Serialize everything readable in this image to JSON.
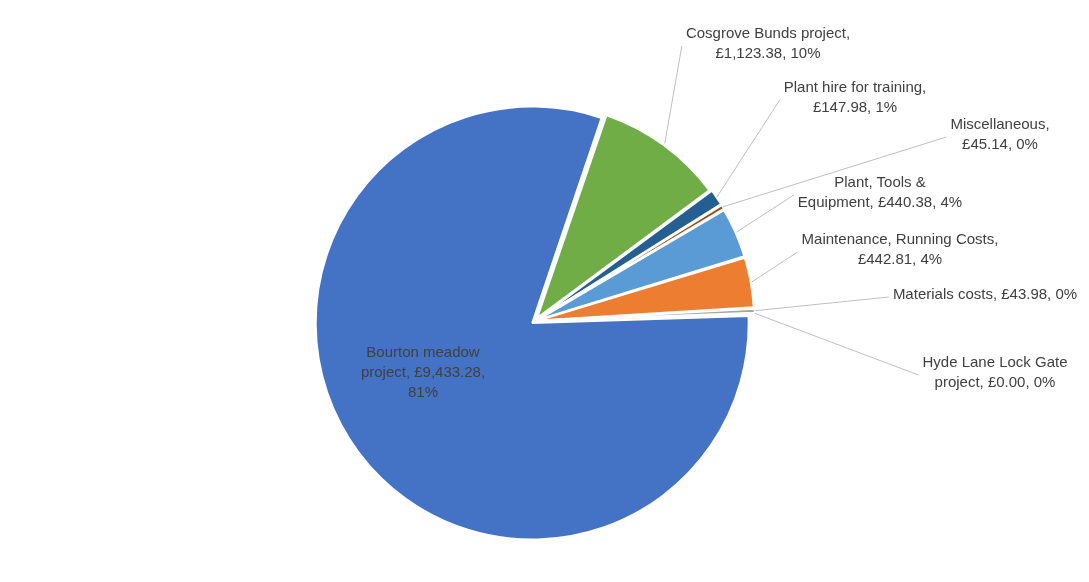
{
  "chart_data": {
    "type": "pie",
    "categories": [
      "Bourton meadow project, £9,433.28, 81%",
      "Cosgrove Bunds project, £1,123.38, 10%",
      "Plant hire for training, £147.98, 1%",
      "Miscellaneous, £45.14, 0%",
      "Plant, Tools & Equipment, £440.38, 4%",
      "Maintenance, Running Costs, £442.81, 4%",
      "Materials costs, £43.98, 0%",
      "Hyde Lane Lock Gate project, £0.00, 0%"
    ],
    "values": [
      9433.28,
      1123.38,
      147.98,
      45.14,
      440.38,
      442.81,
      43.98,
      0
    ],
    "colors": [
      "#4472c4",
      "#70ad47",
      "#255e91",
      "#9e480e",
      "#5b9bd5",
      "#ed7d31",
      "#a5a5a5",
      "#264478"
    ],
    "legend": false
  }
}
